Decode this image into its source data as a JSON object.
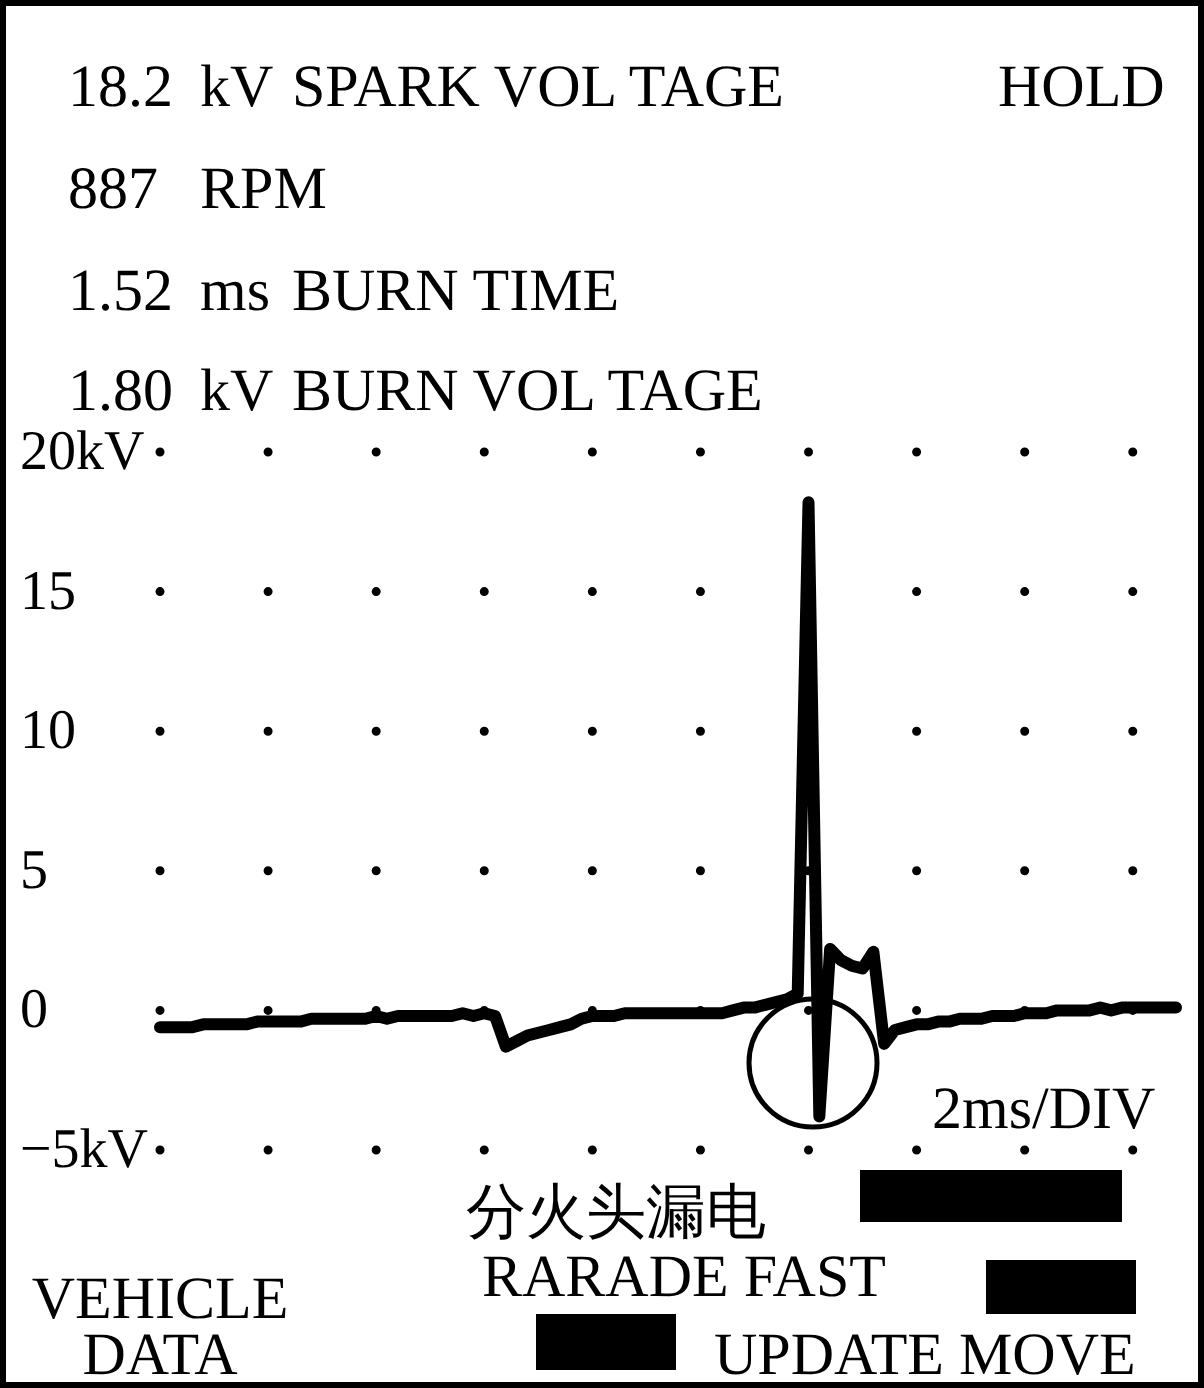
{
  "chart_data": {
    "type": "line",
    "annotations": [
      "18.2 kV SPARK VOL TAGE",
      "HOLD",
      "887 RPM",
      "1.52 ms BURN TIME",
      "1.80 kV BURN VOL TAGE",
      "2ms/DIV",
      "分火头漏电",
      "RARADE FAST",
      "VEHICLE DATA",
      "UPDATE MOVE"
    ],
    "categories": [
      null,
      null,
      null,
      null,
      null,
      null,
      null,
      null,
      null,
      null,
      null,
      null,
      null,
      null,
      null,
      null,
      null,
      null,
      null,
      null,
      null,
      null,
      null,
      null,
      null,
      null,
      null,
      null,
      null,
      null,
      null,
      null,
      null,
      null,
      null,
      null,
      null,
      null,
      null,
      null,
      null,
      null,
      null,
      null,
      null,
      null,
      null,
      null,
      null,
      null,
      null,
      null,
      null,
      null,
      null,
      null,
      null,
      null,
      null,
      null,
      null,
      null,
      null,
      null,
      null,
      null,
      null,
      null,
      null,
      null,
      null,
      null,
      null,
      null,
      null,
      null,
      null,
      null,
      null,
      null,
      null,
      null,
      null,
      null,
      null,
      null,
      null,
      null,
      null,
      null,
      null,
      null,
      null,
      null,
      null
    ],
    "series": [
      {
        "color": "#000000",
        "values": [
          -0.6,
          -0.6,
          -0.6,
          -0.6,
          -0.5,
          -0.5,
          -0.5,
          -0.5,
          -0.5,
          -0.4,
          -0.4,
          -0.4,
          -0.4,
          -0.4,
          -0.3,
          -0.3,
          -0.3,
          -0.3,
          -0.3,
          -0.3,
          -0.2,
          -0.3,
          -0.2,
          -0.2,
          -0.2,
          -0.2,
          -0.2,
          -0.2,
          -0.1,
          -0.2,
          -0.1,
          -0.2,
          -1.3,
          -1.1,
          -0.9,
          -0.8,
          -0.7,
          -0.6,
          -0.5,
          -0.3,
          -0.2,
          -0.2,
          -0.2,
          -0.1,
          -0.1,
          -0.1,
          -0.1,
          -0.1,
          -0.1,
          -0.1,
          -0.1,
          -0.1,
          -0.1,
          0.0,
          0.1,
          0.1,
          0.2,
          0.3,
          0.4,
          0.6,
          18.2,
          -3.8,
          2.2,
          1.8,
          1.6,
          1.5,
          2.1,
          -1.2,
          -0.7,
          -0.6,
          -0.5,
          -0.5,
          -0.4,
          -0.4,
          -0.3,
          -0.3,
          -0.3,
          -0.2,
          -0.2,
          -0.2,
          -0.1,
          -0.1,
          -0.1,
          0.0,
          0.0,
          0.0,
          0.0,
          0.1,
          0.0,
          0.1,
          0.1,
          0.1,
          0.1,
          0.1,
          0.1
        ]
      }
    ],
    "ylim": [
      -5,
      20
    ],
    "yticks": [
      {
        "value": 20,
        "label": "20kV"
      },
      15,
      10,
      5,
      0,
      {
        "value": -5,
        "label": "−5kV"
      }
    ],
    "grid": "y",
    "tick_labels": "y"
  }
}
